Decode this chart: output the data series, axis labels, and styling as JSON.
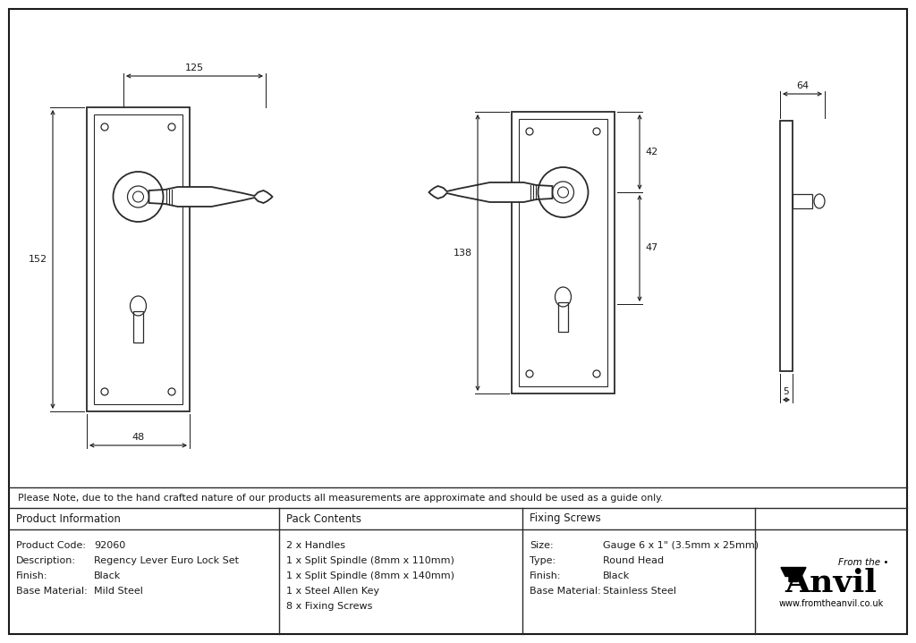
{
  "bg_color": "#ffffff",
  "border_color": "#1a1a1a",
  "line_color": "#2a2a2a",
  "dim_color": "#1a1a1a",
  "note_text": "Please Note, due to the hand crafted nature of our products all measurements are approximate and should be used as a guide only.",
  "product_info": {
    "header": "Product Information",
    "rows": [
      [
        "Product Code:",
        "92060"
      ],
      [
        "Description:",
        "Regency Lever Euro Lock Set"
      ],
      [
        "Finish:",
        "Black"
      ],
      [
        "Base Material:",
        "Mild Steel"
      ]
    ]
  },
  "pack_contents": {
    "header": "Pack Contents",
    "items": [
      "2 x Handles",
      "1 x Split Spindle (8mm x 110mm)",
      "1 x Split Spindle (8mm x 140mm)",
      "1 x Steel Allen Key",
      "8 x Fixing Screws"
    ]
  },
  "fixing_screws": {
    "header": "Fixing Screws",
    "rows": [
      [
        "Size:",
        "Gauge 6 x 1\" (3.5mm x 25mm)"
      ],
      [
        "Type:",
        "Round Head"
      ],
      [
        "Finish:",
        "Black"
      ],
      [
        "Base Material:",
        "Stainless Steel"
      ]
    ]
  },
  "dims": {
    "width_125": "125",
    "width_48": "48",
    "height_152": "152",
    "height_138": "138",
    "dim_42": "42",
    "dim_47": "47",
    "width_64": "64",
    "depth_5": "5"
  }
}
